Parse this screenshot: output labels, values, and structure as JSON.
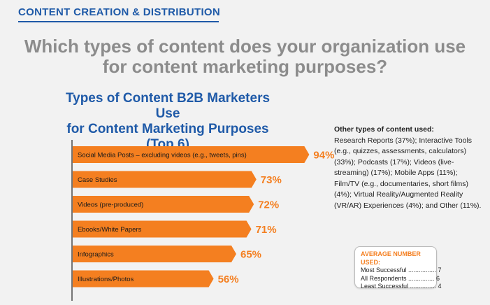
{
  "header": {
    "section_label": "CONTENT CREATION & DISTRIBUTION",
    "question": "Which types of content does your organization use\nfor content marketing purposes?"
  },
  "colors": {
    "bar": "#f47f20",
    "title_blue": "#1f5aa8",
    "question_gray": "#8c8c8c"
  },
  "chart_data": {
    "type": "bar",
    "orientation": "horizontal",
    "title": "Types of Content B2B Marketers Use\nfor Content Marketing Purposes\n(Top 6)",
    "categories": [
      "Social Media Posts – excluding videos (e.g., tweets, pins)",
      "Case Studies",
      "Videos (pre-produced)",
      "Ebooks/White Papers",
      "Infographics",
      "Illustrations/Photos"
    ],
    "values": [
      94,
      73,
      72,
      71,
      65,
      56
    ],
    "value_labels": [
      "94%",
      "73%",
      "72%",
      "71%",
      "65%",
      "56%"
    ],
    "xlim": [
      0,
      100
    ]
  },
  "side_notes": {
    "title": "Other types of content used:",
    "body": "Research Reports (37%); Interactive Tools (e.g., quizzes, assessments, calculators) (33%); Podcasts (17%); Videos (live-streaming) (17%); Mobile Apps (11%); Film/TV (e.g., documentaries, short films) (4%); Virtual Reality/Augmented Reality (VR/AR) Experiences (4%); and Other (11%)."
  },
  "average_box": {
    "title": "AVERAGE NUMBER USED:",
    "rows": [
      "Most Successful ................ 7",
      "All Respondents ............... 6",
      "Least Successful ............... 4"
    ]
  }
}
